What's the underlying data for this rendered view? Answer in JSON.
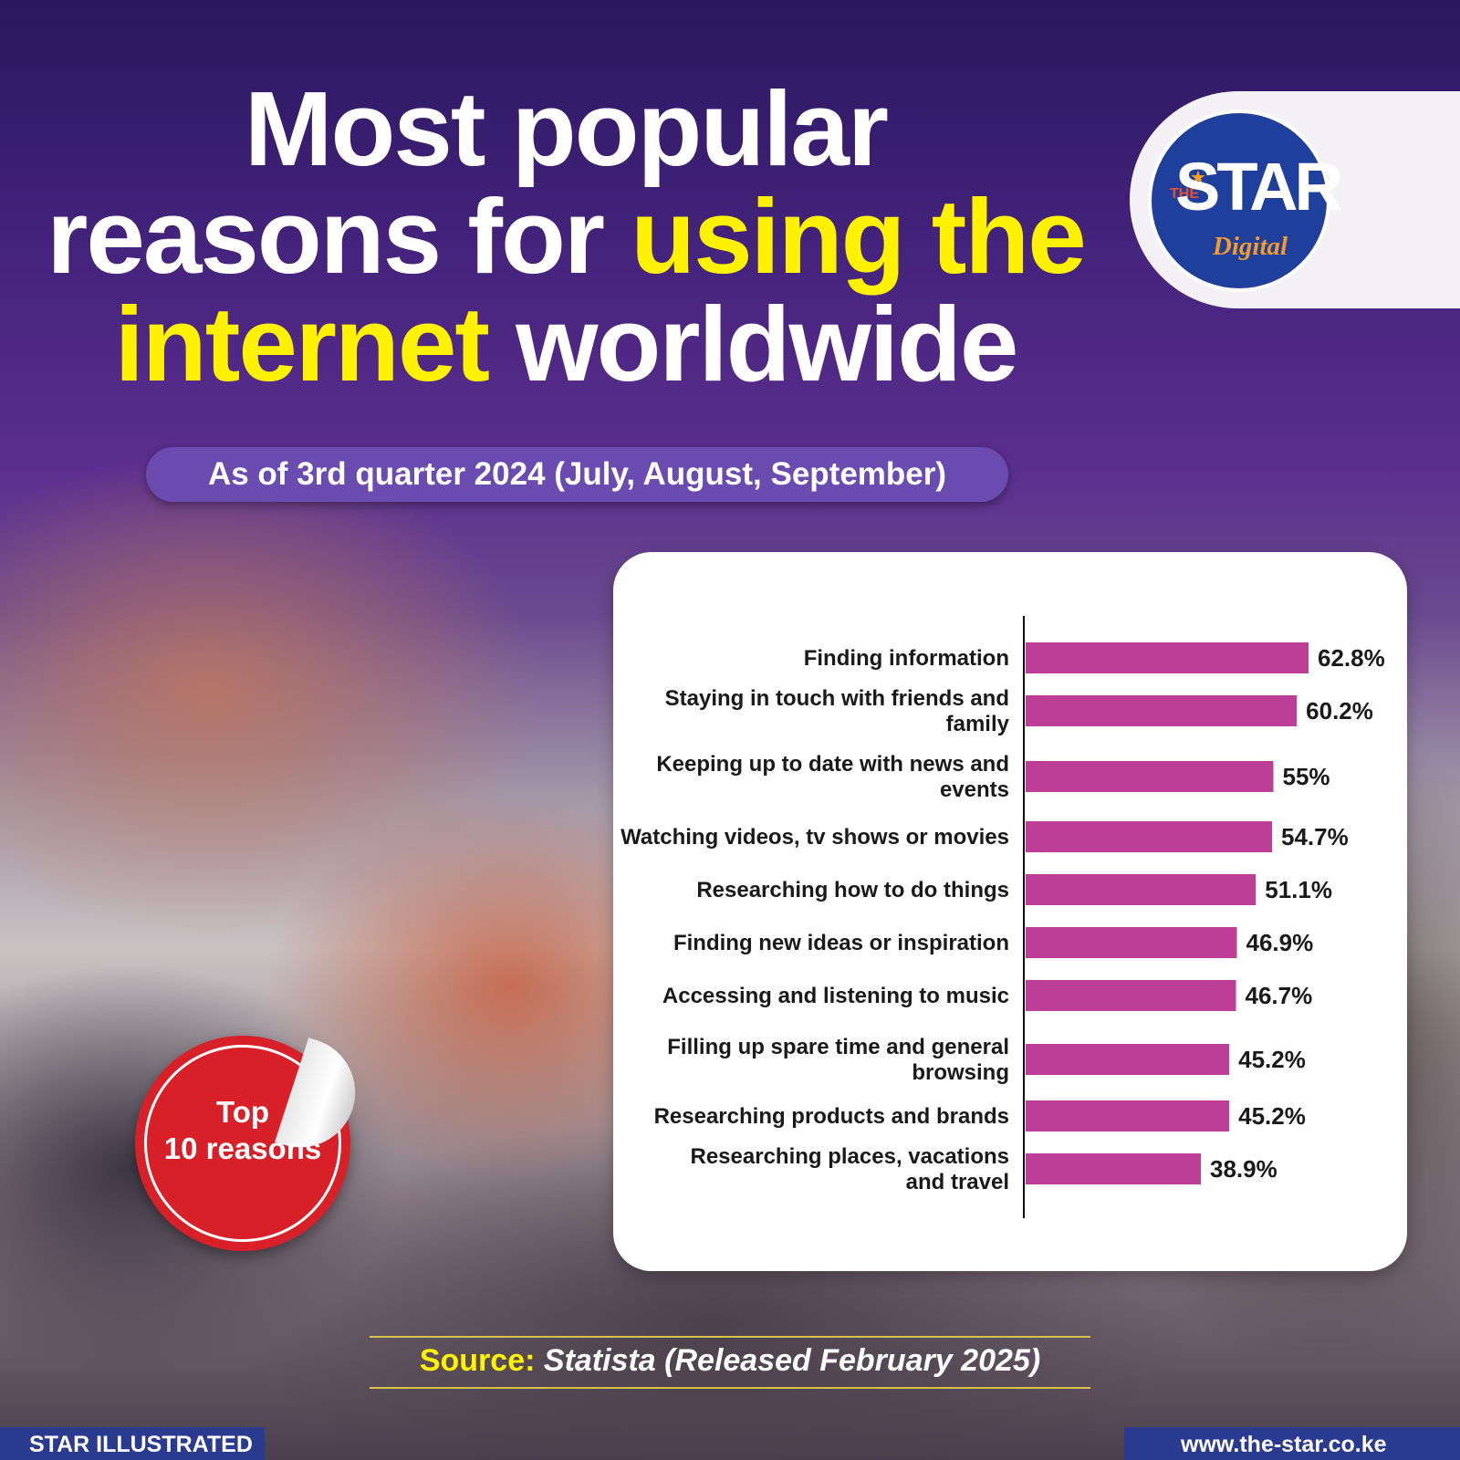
{
  "header": {
    "title_part1": "Most popular reasons for ",
    "title_highlight1": "using the internet",
    "title_part2": " worldwide",
    "subtitle": "As of 3rd quarter 2024 (July, August, September)"
  },
  "logo": {
    "the": "THE",
    "star": "STAR",
    "digital": "Digital"
  },
  "badge": {
    "line1": "Top",
    "line2": "10 reasons"
  },
  "source": {
    "key": "Source:",
    "value": "Statista (Released February 2025)"
  },
  "footer": {
    "left": "STAR ILLUSTRATED",
    "right": "www.the-star.co.ke"
  },
  "colors": {
    "bar": "#bd3e97",
    "accent_yellow": "#fff200",
    "pill": "#6a4bb0",
    "badge_red": "#d72027",
    "footer_blue": "#2a3a8f"
  },
  "chart_data": {
    "type": "bar",
    "orientation": "horizontal",
    "categories": [
      [
        "Finding information"
      ],
      [
        "Staying in touch with friends and",
        "family"
      ],
      [
        "Keeping up to date with news and",
        "events"
      ],
      [
        "Watching videos, tv shows or movies"
      ],
      [
        "Researching how to do things"
      ],
      [
        "Finding new ideas or inspiration"
      ],
      [
        "Accessing and listening to music"
      ],
      [
        "Filling up spare time and general",
        "browsing"
      ],
      [
        "Researching products and brands"
      ],
      [
        "Researching places, vacations",
        "and travel"
      ]
    ],
    "values": [
      62.8,
      60.2,
      55,
      54.7,
      51.1,
      46.9,
      46.7,
      45.2,
      45.2,
      38.9
    ],
    "value_labels": [
      "62.8%",
      "60.2%",
      "55%",
      "54.7%",
      "51.1%",
      "46.9%",
      "46.7%",
      "45.2%",
      "45.2%",
      "38.9%"
    ],
    "xlim": [
      0,
      100
    ],
    "grid": false,
    "legend": "none"
  }
}
